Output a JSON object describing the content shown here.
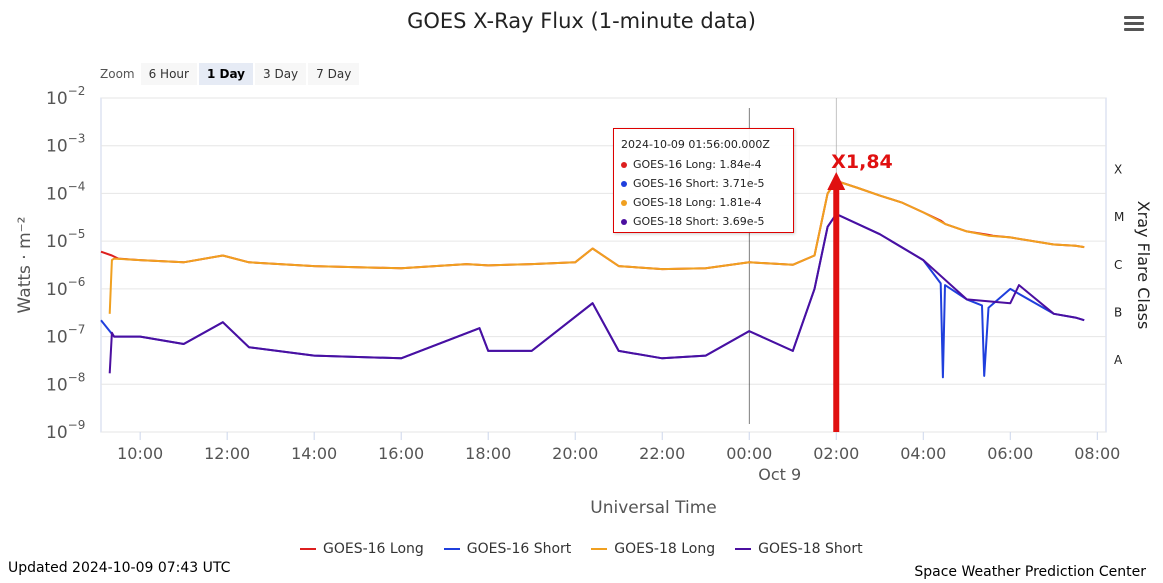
{
  "page": {
    "title": "GOES X-Ray Flux (1-minute data)",
    "updated": "Updated 2024-10-09 07:43 UTC",
    "credit": "Space Weather Prediction Center"
  },
  "zoom": {
    "label": "Zoom",
    "buttons": [
      "6 Hour",
      "1 Day",
      "3 Day",
      "7 Day"
    ],
    "active": "1 Day"
  },
  "tooltip": {
    "time": "2024-10-09 01:56:00.000Z",
    "rows": [
      {
        "label": "GOES-16 Long",
        "value": "1.84e-4",
        "color": "#dd1f1f"
      },
      {
        "label": "GOES-16 Short",
        "value": "3.71e-5",
        "color": "#1f3fdd"
      },
      {
        "label": "GOES-18 Long",
        "value": "1.81e-4",
        "color": "#f0a020"
      },
      {
        "label": "GOES-18 Short",
        "value": "3.69e-5",
        "color": "#4b0fa0"
      }
    ]
  },
  "annotation": {
    "text": "X1,84",
    "color": "#e01010"
  },
  "chart_data": {
    "type": "line",
    "title": "GOES X-Ray Flux (1-minute data)",
    "xlabel": "Universal Time",
    "ylabel": "Watts · m⁻²",
    "y2label": "Xray Flare Class",
    "yscale": "log",
    "ylim": [
      1e-09,
      0.01
    ],
    "xlim": [
      9.1,
      32.2
    ],
    "x_ticks": [
      {
        "x": 10,
        "label": "10:00"
      },
      {
        "x": 12,
        "label": "12:00"
      },
      {
        "x": 14,
        "label": "14:00"
      },
      {
        "x": 16,
        "label": "16:00"
      },
      {
        "x": 18,
        "label": "18:00"
      },
      {
        "x": 20,
        "label": "20:00"
      },
      {
        "x": 22,
        "label": "22:00"
      },
      {
        "x": 24,
        "label": "00:00"
      },
      {
        "x": 26,
        "label": "02:00"
      },
      {
        "x": 28,
        "label": "04:00"
      },
      {
        "x": 30,
        "label": "06:00"
      },
      {
        "x": 32,
        "label": "08:00"
      }
    ],
    "date_label": {
      "x": 24.7,
      "label": "Oct 9"
    },
    "y_ticks": [
      {
        "exp": -2,
        "base": "10",
        "sup": "−2"
      },
      {
        "exp": -3,
        "base": "10",
        "sup": "−3"
      },
      {
        "exp": -4,
        "base": "10",
        "sup": "−4"
      },
      {
        "exp": -5,
        "base": "10",
        "sup": "−5"
      },
      {
        "exp": -6,
        "base": "10",
        "sup": "−6"
      },
      {
        "exp": -7,
        "base": "10",
        "sup": "−7"
      },
      {
        "exp": -8,
        "base": "10",
        "sup": "−8"
      },
      {
        "exp": -9,
        "base": "10",
        "sup": "−9"
      }
    ],
    "flare_classes": [
      {
        "label": "X",
        "y": 0.00032
      },
      {
        "label": "M",
        "y": 3.2e-05
      },
      {
        "label": "C",
        "y": 3.2e-06
      },
      {
        "label": "B",
        "y": 3.2e-07
      },
      {
        "label": "A",
        "y": 3.2e-08
      }
    ],
    "x_units": "hours since 2024-10-08 00:00 UTC",
    "series": [
      {
        "name": "GOES-16 Long",
        "color": "#dd1f1f",
        "x": [
          9.1,
          9.35,
          9.5,
          10,
          11,
          11.9,
          12.5,
          14,
          16,
          17.5,
          18,
          19,
          20,
          20.4,
          21,
          22,
          23,
          24,
          25,
          25.5,
          25.8,
          26,
          26.5,
          27,
          27.5,
          28,
          28.4,
          28.45,
          28.5,
          29,
          29.5,
          29.6,
          30,
          31,
          31.5,
          31.7
        ],
        "y": [
          6e-06,
          5e-06,
          4.3e-06,
          4e-06,
          3.6e-06,
          5e-06,
          3.6e-06,
          3e-06,
          2.7e-06,
          3.3e-06,
          3.1e-06,
          3.3e-06,
          3.6e-06,
          7e-06,
          3e-06,
          2.6e-06,
          2.7e-06,
          3.6e-06,
          3.2e-06,
          5e-06,
          0.0001,
          0.000184,
          0.00013,
          9e-05,
          6.5e-05,
          4e-05,
          2.7e-05,
          2.5e-05,
          2.3e-05,
          1.6e-05,
          1.35e-05,
          1.3e-05,
          1.2e-05,
          8.5e-06,
          8e-06,
          7.5e-06
        ]
      },
      {
        "name": "GOES-16 Short",
        "color": "#1f3fdd",
        "x": [
          9.1,
          9.4,
          10,
          11,
          11.9,
          12.5,
          14,
          16,
          17.8,
          18,
          19,
          20.4,
          21,
          22,
          23,
          24,
          25,
          25.5,
          25.8,
          26,
          27,
          28,
          28.4,
          28.45,
          28.5,
          29,
          29.35,
          29.4,
          29.5,
          30,
          31,
          31.5,
          31.7
        ],
        "y": [
          2.2e-07,
          1e-07,
          1e-07,
          7e-08,
          2e-07,
          6e-08,
          4e-08,
          3.5e-08,
          1.5e-07,
          5e-08,
          5e-08,
          5e-07,
          5e-08,
          3.5e-08,
          4e-08,
          1.3e-07,
          5e-08,
          1e-06,
          2e-05,
          3.71e-05,
          1.4e-05,
          4e-06,
          1.3e-06,
          1.4e-08,
          1.2e-06,
          6e-07,
          4.5e-07,
          1.5e-08,
          4e-07,
          1e-06,
          3e-07,
          2.5e-07,
          2.2e-07
        ]
      },
      {
        "name": "GOES-18 Long",
        "color": "#f0a020",
        "x": [
          9.3,
          9.35,
          9.4,
          10,
          11,
          11.9,
          12.5,
          14,
          16,
          17.5,
          18,
          19,
          20,
          20.4,
          21,
          22,
          23,
          24,
          25,
          25.5,
          25.8,
          26,
          26.5,
          27,
          27.5,
          28,
          28.5,
          29,
          29.5,
          30,
          31,
          31.5,
          31.7
        ],
        "y": [
          3e-07,
          4e-06,
          4.3e-06,
          4e-06,
          3.6e-06,
          5e-06,
          3.6e-06,
          3e-06,
          2.7e-06,
          3.3e-06,
          3.1e-06,
          3.3e-06,
          3.6e-06,
          7e-06,
          3e-06,
          2.6e-06,
          2.7e-06,
          3.6e-06,
          3.2e-06,
          5e-06,
          0.0001,
          0.000181,
          0.00013,
          9e-05,
          6.5e-05,
          4e-05,
          2.3e-05,
          1.6e-05,
          1.3e-05,
          1.2e-05,
          8.5e-06,
          8e-06,
          7.5e-06
        ]
      },
      {
        "name": "GOES-18 Short",
        "color": "#4b0fa0",
        "x": [
          9.3,
          9.35,
          9.4,
          10,
          11,
          11.9,
          12.5,
          14,
          16,
          17.8,
          18,
          19,
          20.4,
          21,
          22,
          23,
          24,
          25,
          25.5,
          25.8,
          26,
          27,
          28,
          29,
          30,
          30.2,
          31,
          31.5,
          31.7
        ],
        "y": [
          1.7e-08,
          1.2e-07,
          1e-07,
          1e-07,
          7e-08,
          2e-07,
          6e-08,
          4e-08,
          3.5e-08,
          1.5e-07,
          5e-08,
          5e-08,
          5e-07,
          5e-08,
          3.5e-08,
          4e-08,
          1.3e-07,
          5e-08,
          1e-06,
          2e-05,
          3.69e-05,
          1.4e-05,
          4e-06,
          6e-07,
          5e-07,
          1.2e-06,
          3e-07,
          2.5e-07,
          2.2e-07
        ]
      }
    ]
  }
}
